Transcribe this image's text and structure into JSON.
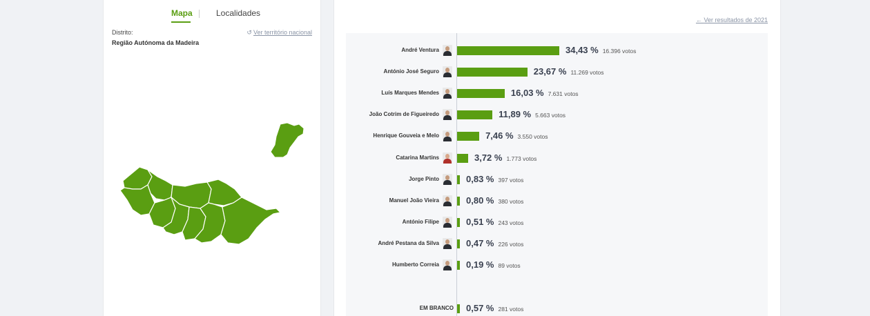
{
  "tabs": {
    "map": "Mapa",
    "localities": "Localidades"
  },
  "district": {
    "label": "Distrito:",
    "value": "Região Autónoma da Madeira",
    "national_link": "Ver território nacional"
  },
  "results": {
    "prev_link": "Ver resultados de 2021",
    "accent": "#5a9e12",
    "candidates": [
      {
        "name": "André Ventura",
        "pct": 34.43,
        "pct_label": "34,43 %",
        "votes": "16.396 votos",
        "avatar": "male"
      },
      {
        "name": "António José Seguro",
        "pct": 23.67,
        "pct_label": "23,67 %",
        "votes": "11.269 votos",
        "avatar": "male"
      },
      {
        "name": "Luís Marques Mendes",
        "pct": 16.03,
        "pct_label": "16,03 %",
        "votes": "7.631 votos",
        "avatar": "male"
      },
      {
        "name": "João Cotrim de Figueiredo",
        "pct": 11.89,
        "pct_label": "11,89 %",
        "votes": "5.663 votos",
        "avatar": "male"
      },
      {
        "name": "Henrique Gouveia e Melo",
        "pct": 7.46,
        "pct_label": "7,46 %",
        "votes": "3.550 votos",
        "avatar": "male"
      },
      {
        "name": "Catarina Martins",
        "pct": 3.72,
        "pct_label": "3,72 %",
        "votes": "1.773 votos",
        "avatar": "female"
      },
      {
        "name": "Jorge Pinto",
        "pct": 0.83,
        "pct_label": "0,83 %",
        "votes": "397 votos",
        "avatar": "male"
      },
      {
        "name": "Manuel João Vieira",
        "pct": 0.8,
        "pct_label": "0,80 %",
        "votes": "380 votos",
        "avatar": "male"
      },
      {
        "name": "António Filipe",
        "pct": 0.51,
        "pct_label": "0,51 %",
        "votes": "243 votos",
        "avatar": "male"
      },
      {
        "name": "André Pestana da Silva",
        "pct": 0.47,
        "pct_label": "0,47 %",
        "votes": "226 votos",
        "avatar": "male"
      },
      {
        "name": "Humberto Correia",
        "pct": 0.19,
        "pct_label": "0,19 %",
        "votes": "89 votos",
        "avatar": "male"
      }
    ],
    "blank": {
      "name": "EM BRANCO",
      "pct": 0.57,
      "pct_label": "0,57 %",
      "votes": "281 votos"
    }
  }
}
